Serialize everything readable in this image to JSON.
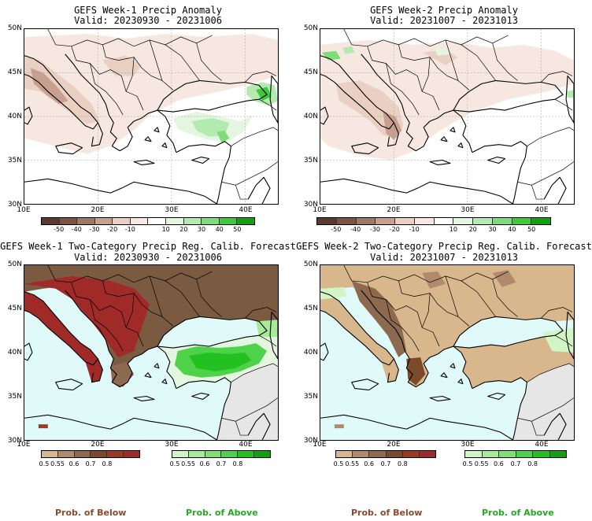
{
  "panels": [
    {
      "title": "GEFS Week-1 Precip Anomaly",
      "valid": "Valid: 20230930 - 20231006"
    },
    {
      "title": "GEFS Week-2 Precip Anomaly",
      "valid": "Valid: 20231007 - 20231013"
    },
    {
      "title": "GEFS Week-1 Two-Category Precip Reg. Calib. Forecast",
      "valid": "Valid: 20230930 - 20231006"
    },
    {
      "title": "GEFS Week-2 Two-Category Precip Reg. Calib. Forecast",
      "valid": "Valid: 20231007 - 20231013"
    }
  ],
  "lat_labels": [
    "50N",
    "45N",
    "40N",
    "35N",
    "30N"
  ],
  "lon_labels": [
    "10E",
    "20E",
    "30E",
    "40E"
  ],
  "anomaly_colorbar": {
    "labels": [
      "-50",
      "-40",
      "-30",
      "-20",
      "-10",
      "10",
      "20",
      "30",
      "40",
      "50"
    ],
    "colors": [
      "#5a3a2e",
      "#7b5446",
      "#a07866",
      "#c8a090",
      "#ead0c2",
      "#f6e8e0",
      "#ffffff",
      "#e4f6e0",
      "#b2eab0",
      "#7edc7a",
      "#3ec83c",
      "#10a010"
    ]
  },
  "below_colorbar": {
    "labels": [
      "0.5",
      "0.55",
      "0.6",
      "0.7",
      "0.8"
    ],
    "colors": [
      "#d9b78c",
      "#b08a6a",
      "#8d6a4f",
      "#7b4a2a",
      "#9a3a1e",
      "#a02a28"
    ]
  },
  "above_colorbar": {
    "labels": [
      "0.5",
      "0.55",
      "0.6",
      "0.7",
      "0.8"
    ],
    "colors": [
      "#d2f5c6",
      "#a6eb98",
      "#7ee070",
      "#4ed24a",
      "#22c020",
      "#10a010"
    ]
  },
  "footer": {
    "below": "Prob. of Below",
    "above": "Prob. of Above"
  },
  "colors": {
    "sea_fill": "#e0fafa",
    "no_data": "#e6e6e6",
    "below_text": "#8b4a2b",
    "above_text": "#22aa22"
  }
}
